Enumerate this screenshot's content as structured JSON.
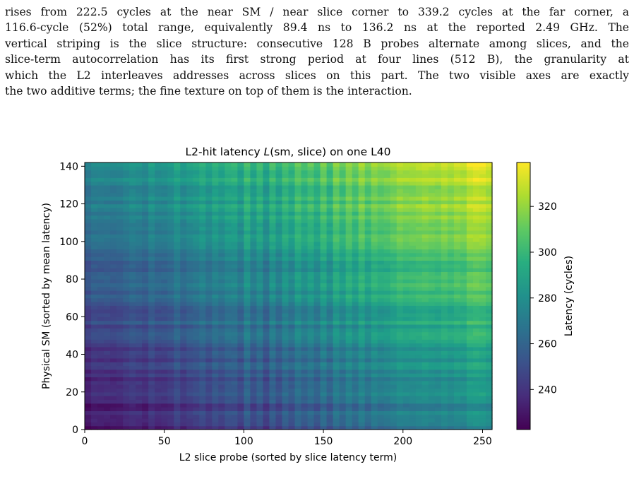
{
  "paragraph": {
    "lines": [
      "rises from 222.5 cycles at the near SM / near slice corner to 339.2 cycles at the far corner, a",
      "116.6-cycle (52%) total range, equivalently 89.4 ns to 136.2 ns at the reported 2.49 GHz. The",
      "vertical striping is the slice structure: consecutive 128 B probes alternate among slices, and the",
      "slice-term autocorrelation has its first strong period at four lines (512 B), the granularity at",
      "which the L2 interleaves addresses across slices on this part. The two visible axes are exactly",
      "the two additive terms; the fine texture on top of them is the interaction."
    ]
  },
  "chart_data": {
    "type": "heatmap",
    "title": "L2-hit latency L(sm, slice) on one L40",
    "xlabel": "L2 slice probe (sorted by slice latency term)",
    "ylabel": "Physical SM (sorted by mean latency)",
    "colorbar_label": "Latency (cycles)",
    "colormap": "viridis",
    "x_range": [
      0,
      256
    ],
    "y_range": [
      0,
      142
    ],
    "x_ticks": [
      0,
      50,
      100,
      150,
      200,
      250
    ],
    "y_ticks": [
      0,
      20,
      40,
      60,
      80,
      100,
      120,
      140
    ],
    "colorbar_range": [
      222.5,
      339.2
    ],
    "colorbar_ticks": [
      240,
      260,
      280,
      300,
      320
    ],
    "value_min": 222.5,
    "value_max": 339.2
  }
}
